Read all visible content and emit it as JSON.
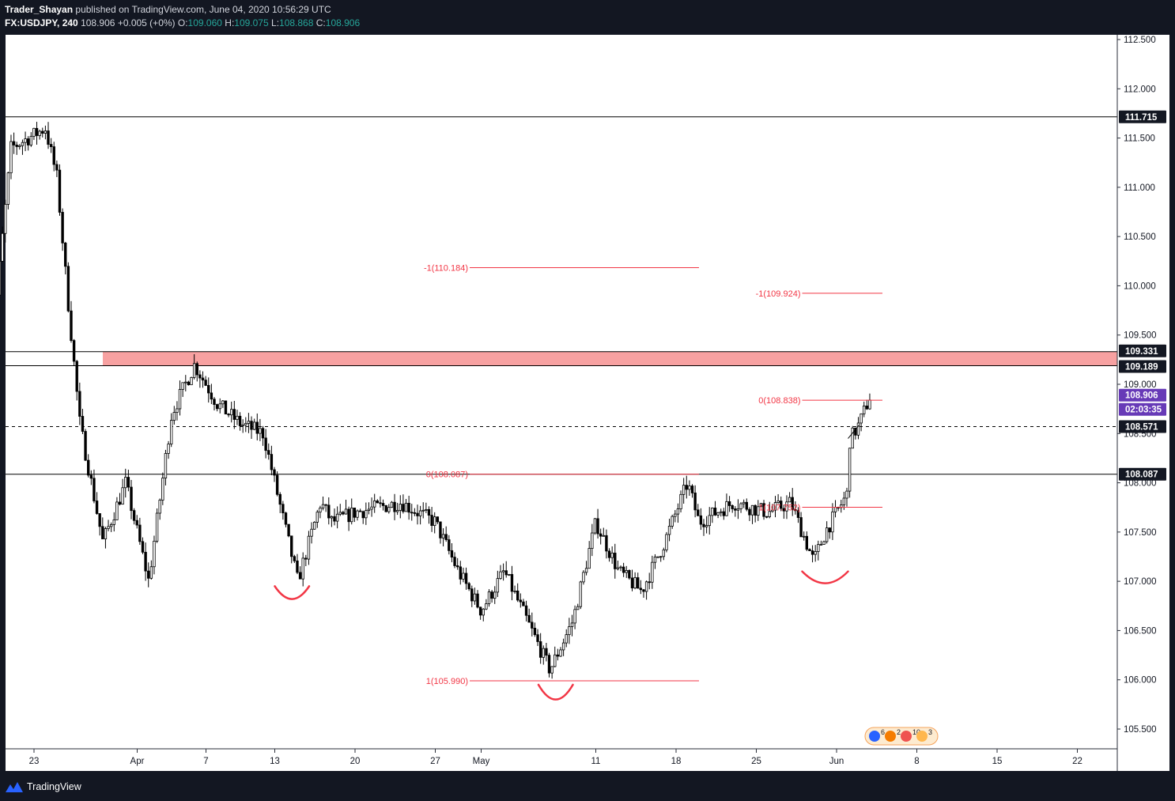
{
  "header": {
    "author": "Trader_Shayan",
    "published_text": "published on TradingView.com, June 04, 2020 10:56:29 UTC",
    "symbol": "FX:USDJPY",
    "interval": "240",
    "last_price": "108.906",
    "change": "+0.005 (+0%)",
    "o_label": "O:",
    "o_value": "109.060",
    "h_label": "H:",
    "h_value": "109.075",
    "l_label": "L:",
    "l_value": "108.868",
    "c_label": "C:",
    "c_value": "108.906"
  },
  "footer": {
    "brand": "TradingView"
  },
  "colors": {
    "background": "#ffffff",
    "frame": "#131722",
    "candle": "#000000",
    "resistance_zone": "#f7a1a1",
    "fib_lines": "#f23645",
    "pattern_arcs": "#f23645",
    "price_tag_dark": "#131722",
    "last_price_tag": "#673ab7"
  },
  "chart_data": {
    "type": "candlestick",
    "symbol": "FX:USDJPY",
    "interval": "240",
    "y_axis": {
      "ticks": [
        "105.500",
        "106.000",
        "106.500",
        "107.000",
        "107.500",
        "108.000",
        "108.500",
        "109.000",
        "109.500",
        "110.000",
        "110.500",
        "111.000",
        "111.500",
        "112.000",
        "112.500"
      ],
      "range": [
        105.3,
        112.8
      ]
    },
    "x_axis": {
      "ticks": [
        {
          "label": "23",
          "date": "2020-03-23"
        },
        {
          "label": "Apr",
          "date": "2020-04-01"
        },
        {
          "label": "7",
          "date": "2020-04-07"
        },
        {
          "label": "13",
          "date": "2020-04-13"
        },
        {
          "label": "20",
          "date": "2020-04-20"
        },
        {
          "label": "27",
          "date": "2020-04-27"
        },
        {
          "label": "May",
          "date": "2020-05-01"
        },
        {
          "label": "11",
          "date": "2020-05-11"
        },
        {
          "label": "18",
          "date": "2020-05-18"
        },
        {
          "label": "25",
          "date": "2020-05-25"
        },
        {
          "label": "Jun",
          "date": "2020-06-01"
        },
        {
          "label": "8",
          "date": "2020-06-08"
        },
        {
          "label": "15",
          "date": "2020-06-15"
        },
        {
          "label": "22",
          "date": "2020-06-22"
        }
      ]
    },
    "price_path": [
      {
        "date": "2020-03-19",
        "price": 109.0
      },
      {
        "date": "2020-03-21",
        "price": 111.4
      },
      {
        "date": "2020-03-24",
        "price": 111.6
      },
      {
        "date": "2020-03-25",
        "price": 111.1
      },
      {
        "date": "2020-03-26",
        "price": 109.8
      },
      {
        "date": "2020-03-27",
        "price": 108.6
      },
      {
        "date": "2020-03-29",
        "price": 107.4
      },
      {
        "date": "2020-03-31",
        "price": 108.0
      },
      {
        "date": "2020-04-02",
        "price": 107.0
      },
      {
        "date": "2020-04-04",
        "price": 108.7
      },
      {
        "date": "2020-04-06",
        "price": 109.2
      },
      {
        "date": "2020-04-08",
        "price": 108.8
      },
      {
        "date": "2020-04-10",
        "price": 108.6
      },
      {
        "date": "2020-04-12",
        "price": 108.5
      },
      {
        "date": "2020-04-13",
        "price": 108.0
      },
      {
        "date": "2020-04-15",
        "price": 107.0
      },
      {
        "date": "2020-04-17",
        "price": 107.8
      },
      {
        "date": "2020-04-18",
        "price": 107.6
      },
      {
        "date": "2020-04-20",
        "price": 107.7
      },
      {
        "date": "2020-04-24",
        "price": 107.8
      },
      {
        "date": "2020-04-27",
        "price": 107.6
      },
      {
        "date": "2020-04-29",
        "price": 107.1
      },
      {
        "date": "2020-05-01",
        "price": 106.7
      },
      {
        "date": "2020-05-03",
        "price": 107.1
      },
      {
        "date": "2020-05-05",
        "price": 106.6
      },
      {
        "date": "2020-05-07",
        "price": 106.1
      },
      {
        "date": "2020-05-09",
        "price": 106.6
      },
      {
        "date": "2020-05-11",
        "price": 107.6
      },
      {
        "date": "2020-05-13",
        "price": 107.1
      },
      {
        "date": "2020-05-15",
        "price": 106.9
      },
      {
        "date": "2020-05-17",
        "price": 107.4
      },
      {
        "date": "2020-05-19",
        "price": 108.0
      },
      {
        "date": "2020-05-20",
        "price": 107.6
      },
      {
        "date": "2020-05-23",
        "price": 107.8
      },
      {
        "date": "2020-05-26",
        "price": 107.7
      },
      {
        "date": "2020-05-28",
        "price": 107.8
      },
      {
        "date": "2020-05-30",
        "price": 107.2
      },
      {
        "date": "2020-05-31",
        "price": 107.5
      },
      {
        "date": "2020-06-02",
        "price": 107.9
      },
      {
        "date": "2020-06-02",
        "price": 108.4
      },
      {
        "date": "2020-06-03",
        "price": 108.6
      },
      {
        "date": "2020-06-04",
        "price": 108.906
      }
    ],
    "horizontal_levels": [
      {
        "price": 111.715,
        "label": "111.715"
      },
      {
        "price": 108.087,
        "label": "108.087"
      },
      {
        "price": 108.571,
        "label": "108.571",
        "dashed": true
      }
    ],
    "resistance_zone": {
      "from": 109.189,
      "to": 109.331,
      "labels": [
        "109.331",
        "109.189"
      ]
    },
    "last_price": {
      "price": 108.906,
      "label": "108.906",
      "countdown": "02:03:35"
    },
    "fib_annotations": [
      {
        "text": "-1(110.184)",
        "price": 110.184,
        "x0": "2020-04-30",
        "x1": "2020-05-20"
      },
      {
        "text": "0(108.087)",
        "price": 108.087,
        "x0": "2020-04-30",
        "x1": "2020-05-20"
      },
      {
        "text": "1(105.990)",
        "price": 105.99,
        "x0": "2020-04-30",
        "x1": "2020-05-20"
      },
      {
        "text": "-1(109.924)",
        "price": 109.924,
        "x0": "2020-05-29",
        "x1": "2020-06-05"
      },
      {
        "text": "0(108.838)",
        "price": 108.838,
        "x0": "2020-05-29",
        "x1": "2020-06-05"
      },
      {
        "text": "1(107.752)",
        "price": 107.752,
        "x0": "2020-05-29",
        "x1": "2020-06-05"
      }
    ],
    "pattern_arcs": [
      {
        "from": "2020-04-13",
        "to": "2020-04-16",
        "center_price": 106.95,
        "low_price": 106.82
      },
      {
        "from": "2020-05-06",
        "to": "2020-05-09",
        "center_price": 105.95,
        "low_price": 105.8
      },
      {
        "from": "2020-05-29",
        "to": "2020-06-02",
        "center_price": 107.1,
        "low_price": 106.98
      }
    ],
    "trend_line": {
      "from_date": "2020-06-02",
      "from_price": 108.45,
      "to_date": "2020-06-03",
      "to_price": 108.59
    },
    "events_badge": {
      "counts": [
        "6",
        "2",
        "10",
        "3"
      ]
    }
  }
}
